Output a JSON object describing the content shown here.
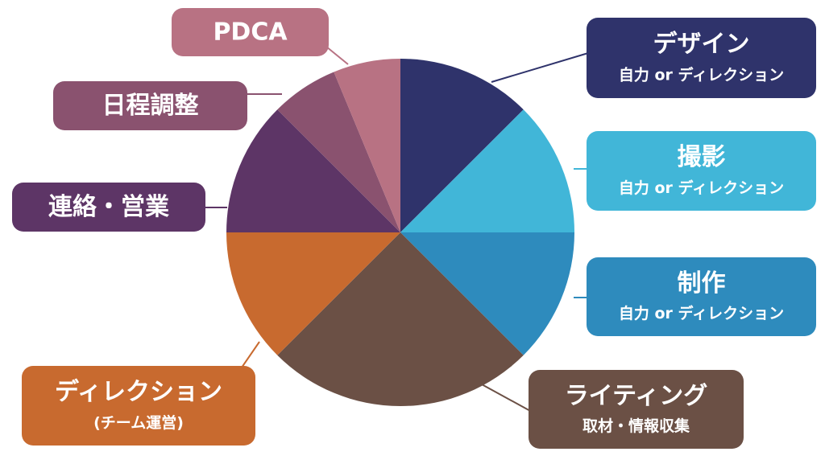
{
  "chart_data": {
    "type": "pie",
    "categories": [
      "デザイン",
      "撮影",
      "制作",
      "ライティング",
      "ディレクション",
      "連絡・営業",
      "日程調整",
      "PDCA"
    ],
    "sublabels": [
      "自力 or ディレクション",
      "自力 or ディレクション",
      "自力 or ディレクション",
      "取材・情報収集",
      "(チーム運営)",
      null,
      null,
      null
    ],
    "values": [
      12.5,
      12.5,
      12.5,
      25,
      12.5,
      12.5,
      6.25,
      6.25
    ],
    "colors": [
      "#2f336b",
      "#41b6d8",
      "#2e8bbd",
      "#6b5045",
      "#c86a2f",
      "#5d3566",
      "#8a526f",
      "#b87283"
    ]
  }
}
